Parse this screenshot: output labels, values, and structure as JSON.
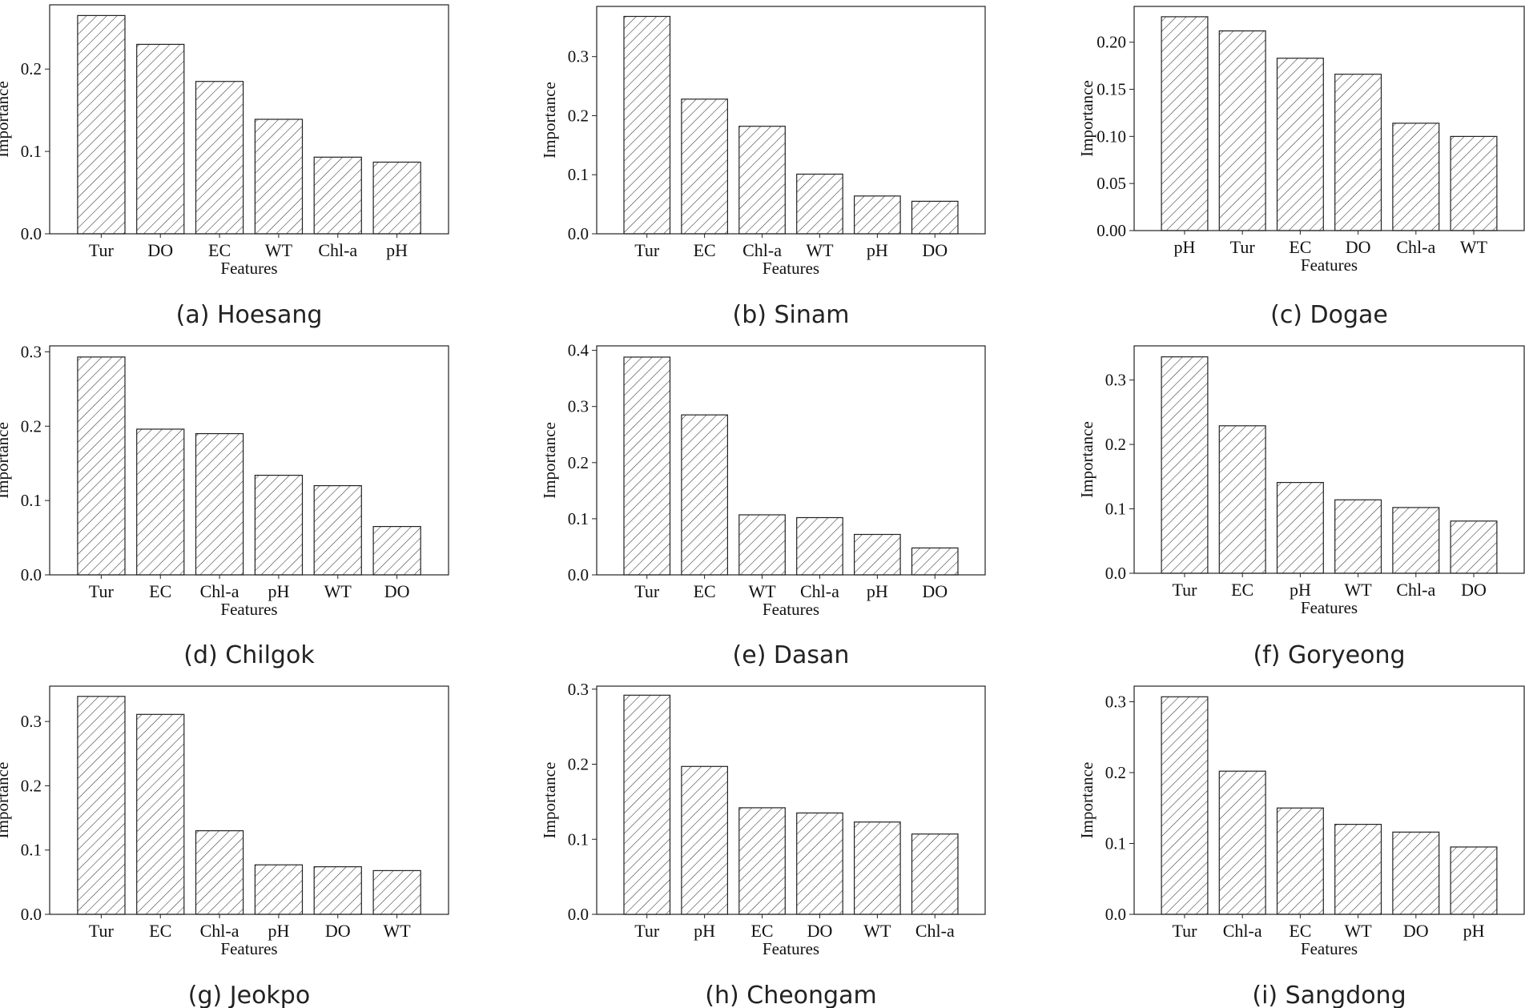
{
  "figure": {
    "xlabel": "Features",
    "ylabel": "Importance",
    "hatch_color": "#333333",
    "bar_fill": "#ffffff"
  },
  "chart_data": [
    {
      "type": "bar",
      "caption": "(a) Hoesang",
      "xlabel": "Features",
      "ylabel": "Importance",
      "categories": [
        "Tur",
        "DO",
        "EC",
        "WT",
        "Chl-a",
        "pH"
      ],
      "values": [
        0.265,
        0.23,
        0.185,
        0.139,
        0.093,
        0.087
      ],
      "ylim": [
        0,
        0.278
      ],
      "yticks": [
        0.0,
        0.1,
        0.2
      ],
      "ytick_labels": [
        "0.0",
        "0.1",
        "0.2"
      ]
    },
    {
      "type": "bar",
      "caption": "(b) Sinam",
      "xlabel": "Features",
      "ylabel": "Importance",
      "categories": [
        "Tur",
        "EC",
        "Chl-a",
        "WT",
        "pH",
        "DO"
      ],
      "values": [
        0.368,
        0.228,
        0.182,
        0.101,
        0.064,
        0.055
      ],
      "ylim": [
        0,
        0.385
      ],
      "yticks": [
        0.0,
        0.1,
        0.2,
        0.3
      ],
      "ytick_labels": [
        "0.0",
        "0.1",
        "0.2",
        "0.3"
      ]
    },
    {
      "type": "bar",
      "caption": "(c) Dogae",
      "xlabel": "Features",
      "ylabel": "Importance",
      "categories": [
        "pH",
        "Tur",
        "EC",
        "DO",
        "Chl-a",
        "WT"
      ],
      "values": [
        0.227,
        0.212,
        0.183,
        0.166,
        0.114,
        0.1
      ],
      "ylim": [
        0,
        0.238
      ],
      "yticks": [
        0.0,
        0.05,
        0.1,
        0.15,
        0.2
      ],
      "ytick_labels": [
        "0.00",
        "0.05",
        "0.10",
        "0.15",
        "0.20"
      ]
    },
    {
      "type": "bar",
      "caption": "(d) Chilgok",
      "xlabel": "Features",
      "ylabel": "Importance",
      "categories": [
        "Tur",
        "EC",
        "Chl-a",
        "pH",
        "WT",
        "DO"
      ],
      "values": [
        0.293,
        0.196,
        0.19,
        0.134,
        0.12,
        0.065
      ],
      "ylim": [
        0,
        0.308
      ],
      "yticks": [
        0.0,
        0.1,
        0.2,
        0.3
      ],
      "ytick_labels": [
        "0.0",
        "0.1",
        "0.2",
        "0.3"
      ]
    },
    {
      "type": "bar",
      "caption": "(e) Dasan",
      "xlabel": "Features",
      "ylabel": "Importance",
      "categories": [
        "Tur",
        "EC",
        "WT",
        "Chl-a",
        "pH",
        "DO"
      ],
      "values": [
        0.388,
        0.285,
        0.107,
        0.102,
        0.072,
        0.048
      ],
      "ylim": [
        0,
        0.408
      ],
      "yticks": [
        0.0,
        0.1,
        0.2,
        0.3,
        0.4
      ],
      "ytick_labels": [
        "0.0",
        "0.1",
        "0.2",
        "0.3",
        "0.4"
      ]
    },
    {
      "type": "bar",
      "caption": "(f) Goryeong",
      "xlabel": "Features",
      "ylabel": "Importance",
      "categories": [
        "Tur",
        "EC",
        "pH",
        "WT",
        "Chl-a",
        "DO"
      ],
      "values": [
        0.336,
        0.229,
        0.141,
        0.114,
        0.102,
        0.081
      ],
      "ylim": [
        0,
        0.353
      ],
      "yticks": [
        0.0,
        0.1,
        0.2,
        0.3
      ],
      "ytick_labels": [
        "0.0",
        "0.1",
        "0.2",
        "0.3"
      ]
    },
    {
      "type": "bar",
      "caption": "(g) Jeokpo",
      "xlabel": "Features",
      "ylabel": "Importance",
      "categories": [
        "Tur",
        "EC",
        "Chl-a",
        "pH",
        "DO",
        "WT"
      ],
      "values": [
        0.339,
        0.311,
        0.13,
        0.077,
        0.074,
        0.068
      ],
      "ylim": [
        0,
        0.355
      ],
      "yticks": [
        0.0,
        0.1,
        0.2,
        0.3
      ],
      "ytick_labels": [
        "0.0",
        "0.1",
        "0.2",
        "0.3"
      ]
    },
    {
      "type": "bar",
      "caption": "(h) Cheongam",
      "xlabel": "Features",
      "ylabel": "Importance",
      "categories": [
        "Tur",
        "pH",
        "EC",
        "DO",
        "WT",
        "Chl-a"
      ],
      "values": [
        0.292,
        0.197,
        0.142,
        0.135,
        0.123,
        0.107
      ],
      "ylim": [
        0,
        0.304
      ],
      "yticks": [
        0.0,
        0.1,
        0.2,
        0.3
      ],
      "ytick_labels": [
        "0.0",
        "0.1",
        "0.2",
        "0.3"
      ]
    },
    {
      "type": "bar",
      "caption": "(i) Sangdong",
      "xlabel": "Features",
      "ylabel": "Importance",
      "categories": [
        "Tur",
        "Chl-a",
        "EC",
        "WT",
        "DO",
        "pH"
      ],
      "values": [
        0.307,
        0.202,
        0.15,
        0.127,
        0.116,
        0.095
      ],
      "ylim": [
        0,
        0.322
      ],
      "yticks": [
        0.0,
        0.1,
        0.2,
        0.3
      ],
      "ytick_labels": [
        "0.0",
        "0.1",
        "0.2",
        "0.3"
      ]
    }
  ]
}
